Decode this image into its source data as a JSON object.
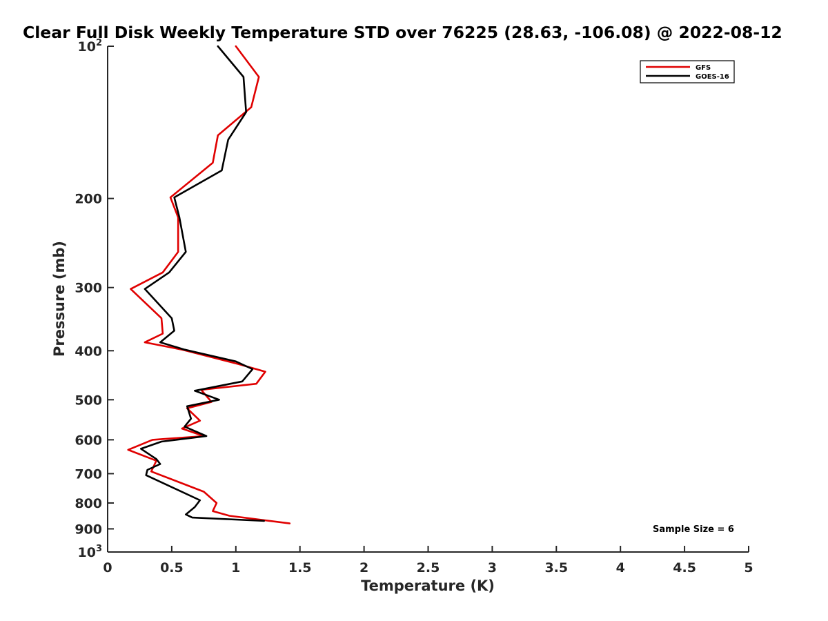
{
  "chart_data": {
    "type": "line",
    "title": "Clear Full Disk Weekly Temperature STD over 76225 (28.63, -106.08) @ 2022-08-12",
    "xlabel": "Temperature (K)",
    "ylabel": "Pressure (mb)",
    "xlim": [
      0,
      5
    ],
    "ylim": [
      100,
      1000
    ],
    "y_scale": "log",
    "y_reversed": true,
    "grid": false,
    "legend_position": "top-right",
    "x_ticks": [
      "0",
      "0.5",
      "1",
      "1.5",
      "2",
      "2.5",
      "3",
      "3.5",
      "4",
      "4.5",
      "5"
    ],
    "y_ticks": [
      {
        "value": 100,
        "base": "10",
        "exp": "2"
      },
      {
        "value": 200,
        "label": "200"
      },
      {
        "value": 300,
        "label": "300"
      },
      {
        "value": 400,
        "label": "400"
      },
      {
        "value": 500,
        "label": "500"
      },
      {
        "value": 600,
        "label": "600"
      },
      {
        "value": 700,
        "label": "700"
      },
      {
        "value": 800,
        "label": "800"
      },
      {
        "value": 900,
        "label": "900"
      },
      {
        "value": 1000,
        "base": "10",
        "exp": "3"
      }
    ],
    "series": [
      {
        "name": "GFS",
        "color": "#e00000",
        "points": [
          [
            1.0,
            100
          ],
          [
            1.18,
            115
          ],
          [
            1.12,
            132
          ],
          [
            0.86,
            150
          ],
          [
            0.82,
            170
          ],
          [
            0.49,
            199
          ],
          [
            0.55,
            218
          ],
          [
            0.55,
            255
          ],
          [
            0.43,
            280
          ],
          [
            0.18,
            302
          ],
          [
            0.42,
            345
          ],
          [
            0.43,
            370
          ],
          [
            0.29,
            385
          ],
          [
            0.58,
            398
          ],
          [
            1.02,
            425
          ],
          [
            1.23,
            440
          ],
          [
            1.16,
            465
          ],
          [
            0.73,
            478
          ],
          [
            0.81,
            505
          ],
          [
            0.62,
            520
          ],
          [
            0.72,
            550
          ],
          [
            0.58,
            570
          ],
          [
            0.75,
            590
          ],
          [
            0.35,
            600
          ],
          [
            0.16,
            628
          ],
          [
            0.38,
            660
          ],
          [
            0.34,
            693
          ],
          [
            0.75,
            760
          ],
          [
            0.85,
            800
          ],
          [
            0.82,
            830
          ],
          [
            0.95,
            848
          ],
          [
            1.42,
            878
          ]
        ]
      },
      {
        "name": "GOES-16",
        "color": "#000000",
        "points": [
          [
            0.86,
            100
          ],
          [
            1.06,
            115
          ],
          [
            1.08,
            135
          ],
          [
            0.94,
            153
          ],
          [
            0.89,
            176
          ],
          [
            0.52,
            199
          ],
          [
            0.56,
            218
          ],
          [
            0.61,
            255
          ],
          [
            0.48,
            280
          ],
          [
            0.29,
            302
          ],
          [
            0.5,
            345
          ],
          [
            0.52,
            365
          ],
          [
            0.41,
            385
          ],
          [
            0.6,
            398
          ],
          [
            1.0,
            420
          ],
          [
            1.13,
            435
          ],
          [
            1.05,
            460
          ],
          [
            0.68,
            480
          ],
          [
            0.87,
            500
          ],
          [
            0.62,
            515
          ],
          [
            0.65,
            545
          ],
          [
            0.6,
            565
          ],
          [
            0.77,
            590
          ],
          [
            0.42,
            605
          ],
          [
            0.26,
            625
          ],
          [
            0.38,
            655
          ],
          [
            0.41,
            670
          ],
          [
            0.31,
            688
          ],
          [
            0.3,
            705
          ],
          [
            0.72,
            790
          ],
          [
            0.68,
            815
          ],
          [
            0.61,
            843
          ],
          [
            0.66,
            855
          ],
          [
            1.22,
            868
          ]
        ]
      }
    ],
    "annotation": "Sample Size = 6"
  },
  "colors": {
    "gfs": "#e00000",
    "goes": "#000000",
    "axis": "#262626",
    "background": "#ffffff"
  }
}
